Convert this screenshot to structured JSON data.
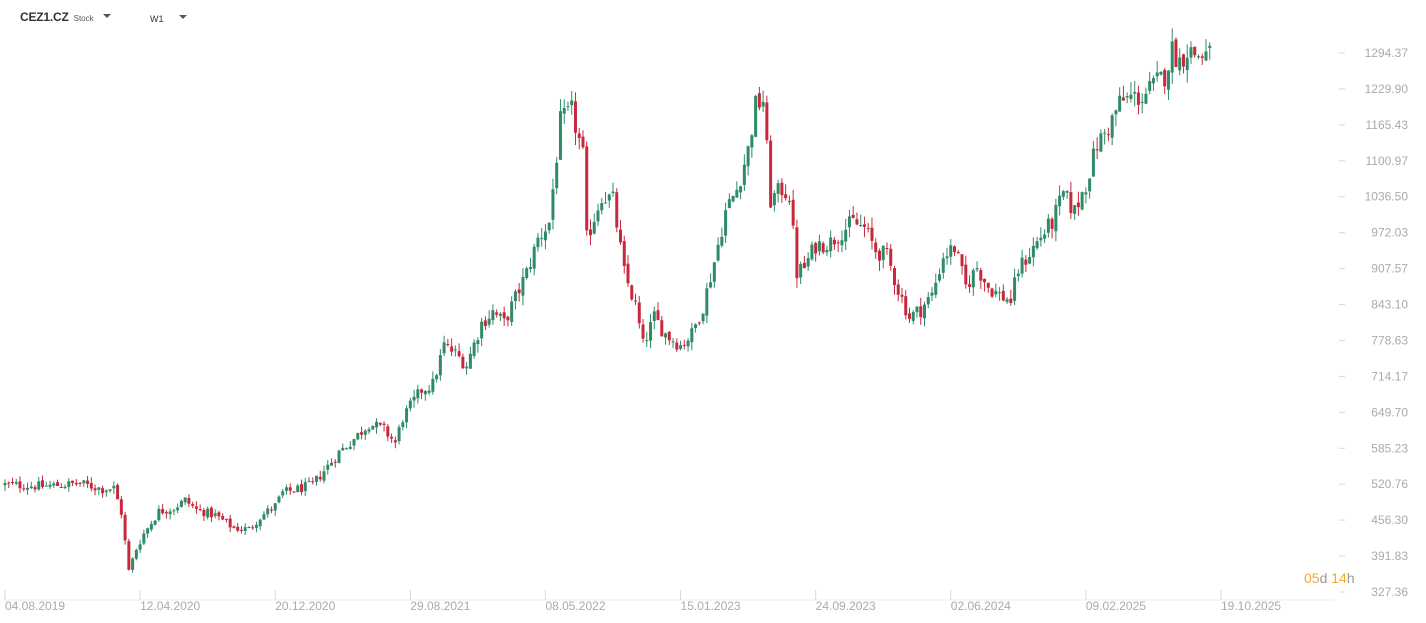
{
  "toolbar": {
    "symbol": "CEZ1.CZ",
    "symbol_type": "Stock",
    "timeframe": "W1"
  },
  "countdown": {
    "days": "05",
    "days_unit": "d",
    "hours": "14",
    "hours_unit": "h"
  },
  "colors": {
    "up": "#2e8b68",
    "down": "#c8283c",
    "grid": "#d8d8d8",
    "axis_text": "#aaaaaa",
    "countdown": "#f0a830"
  },
  "chart_data": {
    "type": "candlestick",
    "title": "",
    "xlabel": "",
    "ylabel": "",
    "price_ticks": [
      "1294.37",
      "1229.90",
      "1165.43",
      "1100.97",
      "1036.50",
      "972.03",
      "907.57",
      "843.10",
      "778.63",
      "714.17",
      "649.70",
      "585.23",
      "520.76",
      "456.30",
      "391.83",
      "327.36"
    ],
    "ylim": [
      327.36,
      1294.37
    ],
    "date_ticks": [
      "04.08.2019",
      "12.04.2020",
      "20.12.2020",
      "29.08.2021",
      "08.05.2022",
      "15.01.2023",
      "24.09.2023",
      "02.06.2024",
      "09.02.2025",
      "19.10.2025"
    ],
    "x_start": "2019-08-04",
    "x_end": "2025-10-19",
    "close_anchors": [
      [
        "2019-08-04",
        520
      ],
      [
        "2019-10-13",
        517
      ],
      [
        "2019-12-22",
        522
      ],
      [
        "2020-02-02",
        512
      ],
      [
        "2020-02-23",
        514
      ],
      [
        "2020-03-08",
        470
      ],
      [
        "2020-03-22",
        365
      ],
      [
        "2020-04-05",
        405
      ],
      [
        "2020-04-19",
        432
      ],
      [
        "2020-05-17",
        472
      ],
      [
        "2020-06-14",
        478
      ],
      [
        "2020-07-05",
        492
      ],
      [
        "2020-07-26",
        475
      ],
      [
        "2020-08-30",
        465
      ],
      [
        "2020-10-04",
        442
      ],
      [
        "2020-11-01",
        440
      ],
      [
        "2020-11-22",
        462
      ],
      [
        "2020-12-20",
        482
      ],
      [
        "2021-01-03",
        505
      ],
      [
        "2021-01-31",
        512
      ],
      [
        "2021-02-28",
        520
      ],
      [
        "2021-03-21",
        545
      ],
      [
        "2021-04-18",
        578
      ],
      [
        "2021-05-16",
        602
      ],
      [
        "2021-06-13",
        630
      ],
      [
        "2021-07-11",
        618
      ],
      [
        "2021-08-01",
        595
      ],
      [
        "2021-08-15",
        640
      ],
      [
        "2021-08-29",
        660
      ],
      [
        "2021-09-19",
        690
      ],
      [
        "2021-10-10",
        700
      ],
      [
        "2021-10-31",
        770
      ],
      [
        "2021-11-21",
        755
      ],
      [
        "2021-12-12",
        735
      ],
      [
        "2022-01-09",
        810
      ],
      [
        "2022-01-30",
        830
      ],
      [
        "2022-02-20",
        810
      ],
      [
        "2022-03-13",
        855
      ],
      [
        "2022-04-03",
        900
      ],
      [
        "2022-04-24",
        960
      ],
      [
        "2022-05-15",
        990
      ],
      [
        "2022-06-05",
        1170
      ],
      [
        "2022-06-26",
        1190
      ],
      [
        "2022-07-17",
        1110
      ],
      [
        "2022-07-24",
        960
      ],
      [
        "2022-08-21",
        1040
      ],
      [
        "2022-09-11",
        1030
      ],
      [
        "2022-10-02",
        900
      ],
      [
        "2022-10-23",
        840
      ],
      [
        "2022-11-06",
        770
      ],
      [
        "2022-11-27",
        820
      ],
      [
        "2022-12-18",
        790
      ],
      [
        "2023-01-15",
        770
      ],
      [
        "2023-02-05",
        790
      ],
      [
        "2023-02-26",
        840
      ],
      [
        "2023-03-19",
        920
      ],
      [
        "2023-04-09",
        1010
      ],
      [
        "2023-04-30",
        1050
      ],
      [
        "2023-05-21",
        1120
      ],
      [
        "2023-06-04",
        1200
      ],
      [
        "2023-06-18",
        1210
      ],
      [
        "2023-07-02",
        1030
      ],
      [
        "2023-07-23",
        1050
      ],
      [
        "2023-08-06",
        1040
      ],
      [
        "2023-08-20",
        900
      ],
      [
        "2023-09-03",
        910
      ],
      [
        "2023-09-24",
        950
      ],
      [
        "2023-10-22",
        955
      ],
      [
        "2023-11-12",
        975
      ],
      [
        "2023-12-03",
        990
      ],
      [
        "2023-12-24",
        980
      ],
      [
        "2024-01-14",
        940
      ],
      [
        "2024-02-04",
        930
      ],
      [
        "2024-02-25",
        870
      ],
      [
        "2024-03-17",
        820
      ],
      [
        "2024-04-07",
        835
      ],
      [
        "2024-04-28",
        860
      ],
      [
        "2024-05-19",
        930
      ],
      [
        "2024-06-09",
        945
      ],
      [
        "2024-06-30",
        875
      ],
      [
        "2024-07-21",
        910
      ],
      [
        "2024-08-11",
        875
      ],
      [
        "2024-09-01",
        860
      ],
      [
        "2024-09-22",
        850
      ],
      [
        "2024-10-06",
        905
      ],
      [
        "2024-10-27",
        935
      ],
      [
        "2024-11-17",
        965
      ],
      [
        "2024-12-08",
        990
      ],
      [
        "2024-12-29",
        1040
      ],
      [
        "2025-01-19",
        1010
      ],
      [
        "2025-02-09",
        1060
      ],
      [
        "2025-03-02",
        1130
      ],
      [
        "2025-03-23",
        1160
      ],
      [
        "2025-04-13",
        1205
      ],
      [
        "2025-05-04",
        1215
      ],
      [
        "2025-05-25",
        1215
      ],
      [
        "2025-06-15",
        1235
      ],
      [
        "2025-07-06",
        1255
      ],
      [
        "2025-07-20",
        1300
      ],
      [
        "2025-08-03",
        1280
      ],
      [
        "2025-08-17",
        1300
      ],
      [
        "2025-09-07",
        1290
      ],
      [
        "2025-09-28",
        1292
      ]
    ],
    "grid": false
  }
}
